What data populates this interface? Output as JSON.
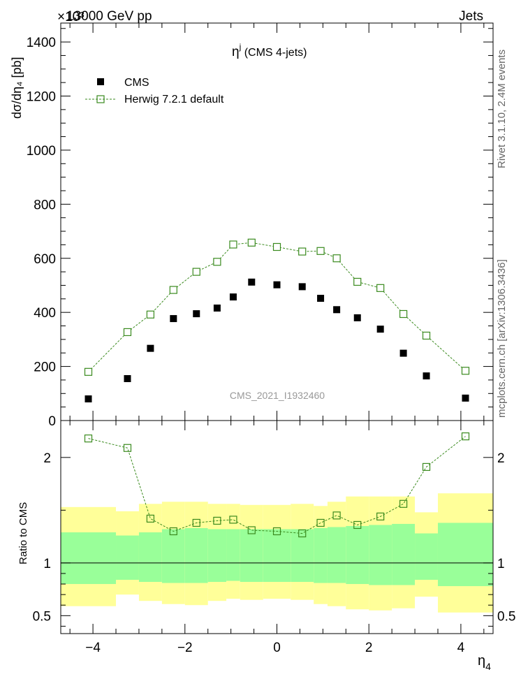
{
  "header": {
    "left": "13000 GeV pp",
    "right": "Jets",
    "exponent": "×10³",
    "plot_title_main": "η",
    "plot_title_sup": "j",
    "plot_title_rest": " (CMS 4-jets)",
    "analysis_id": "CMS_2021_I1932460"
  },
  "side_labels": {
    "rivet": "Rivet 3.1.10,  2.4M events",
    "mcplots": "mcplots.cern.ch [arXiv:1306.3436]"
  },
  "axes": {
    "ylabel_main": "dσ/dη₄ [pb]",
    "ylabel_ratio": "Ratio to CMS",
    "xlabel": "η",
    "xlabel_sub": "4"
  },
  "legend": {
    "cms": "CMS",
    "mc": "Herwig 7.2.1 default"
  },
  "colors": {
    "mc": "#3a8a1e",
    "band_outer": "#ffff99",
    "band_inner": "#99ff99",
    "data": "#000000"
  },
  "chart_data": {
    "type": "scatter",
    "title": "ηj (CMS 4-jets)",
    "xlabel": "η4",
    "ylabel": "dσ/dη4 [pb] (×10³)",
    "xlim": [
      -4.7,
      4.7
    ],
    "ylim": [
      0,
      1470
    ],
    "ratio_ylim": [
      0.33,
      2.35
    ],
    "xticks": [
      -4,
      -2,
      0,
      2,
      4
    ],
    "yticks": [
      0,
      200,
      400,
      600,
      800,
      1000,
      1200,
      1400
    ],
    "ratio_yticks": [
      0.5,
      1,
      2
    ],
    "bin_edges": [
      -4.7,
      -3.5,
      -3.0,
      -2.5,
      -2.0,
      -1.5,
      -1.1,
      -0.8,
      -0.3,
      0.3,
      0.8,
      1.1,
      1.5,
      2.0,
      2.5,
      3.0,
      3.5,
      4.7
    ],
    "series": [
      {
        "name": "CMS",
        "x": [
          -4.1,
          -3.25,
          -2.75,
          -2.25,
          -1.75,
          -1.3,
          -0.95,
          -0.55,
          0.0,
          0.55,
          0.95,
          1.3,
          1.75,
          2.25,
          2.75,
          3.25,
          4.1
        ],
        "values": [
          80,
          155,
          267,
          377,
          395,
          416,
          457,
          512,
          502,
          495,
          452,
          410,
          380,
          338,
          249,
          165,
          83
        ]
      },
      {
        "name": "Herwig 7.2.1 default",
        "x": [
          -4.1,
          -3.25,
          -2.75,
          -2.25,
          -1.75,
          -1.3,
          -0.95,
          -0.55,
          0.0,
          0.55,
          0.95,
          1.3,
          1.75,
          2.25,
          2.75,
          3.25,
          4.1
        ],
        "values": [
          180,
          327,
          392,
          483,
          550,
          587,
          651,
          658,
          642,
          625,
          627,
          600,
          513,
          490,
          394,
          314,
          184
        ]
      }
    ],
    "ratio": {
      "values": [
        2.18,
        2.09,
        1.42,
        1.3,
        1.38,
        1.4,
        1.41,
        1.31,
        1.3,
        1.28,
        1.38,
        1.45,
        1.36,
        1.44,
        1.56,
        1.91,
        2.2
      ],
      "band_outer_low": [
        0.59,
        0.7,
        0.64,
        0.61,
        0.6,
        0.64,
        0.66,
        0.65,
        0.66,
        0.65,
        0.61,
        0.59,
        0.56,
        0.55,
        0.57,
        0.68,
        0.53
      ],
      "band_outer_high": [
        1.53,
        1.49,
        1.56,
        1.58,
        1.58,
        1.56,
        1.56,
        1.55,
        1.55,
        1.56,
        1.54,
        1.58,
        1.63,
        1.63,
        1.63,
        1.48,
        1.66
      ],
      "band_inner_low": [
        0.8,
        0.84,
        0.82,
        0.81,
        0.81,
        0.82,
        0.83,
        0.82,
        0.82,
        0.82,
        0.81,
        0.81,
        0.8,
        0.79,
        0.79,
        0.84,
        0.78
      ],
      "band_inner_high": [
        1.29,
        1.26,
        1.29,
        1.32,
        1.33,
        1.32,
        1.32,
        1.32,
        1.32,
        1.32,
        1.33,
        1.34,
        1.35,
        1.36,
        1.37,
        1.28,
        1.38
      ]
    }
  }
}
